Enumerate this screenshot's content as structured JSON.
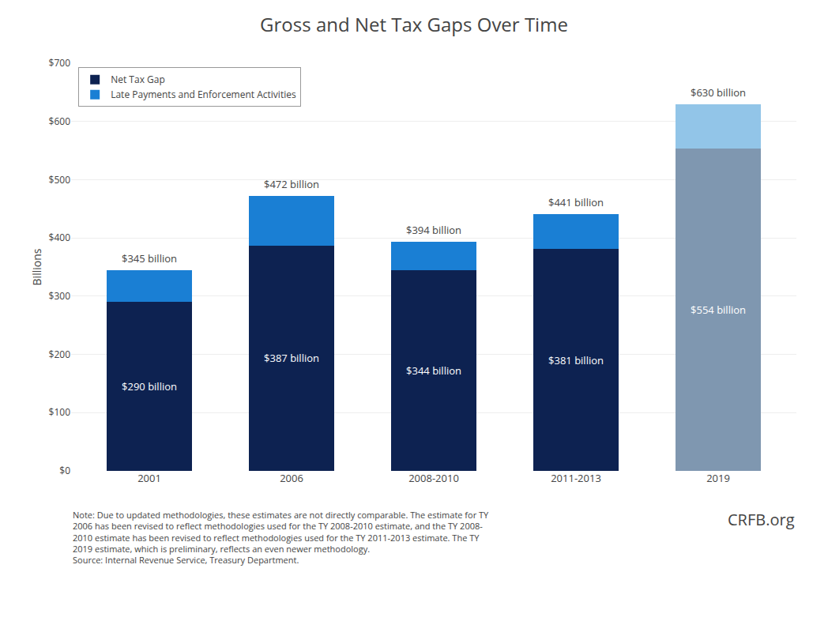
{
  "chart_data": {
    "type": "bar",
    "title": "Gross and Net Tax Gaps Over Time",
    "ylabel": "Billions",
    "categories": [
      "2001",
      "2006",
      "2008-2010",
      "2011-2013",
      "2019"
    ],
    "stacked": true,
    "data_labels": true,
    "series": [
      {
        "name": "Net Tax Gap",
        "values": [
          290,
          387,
          344,
          381,
          554
        ],
        "value_labels": [
          "$290 billion",
          "$387 billion",
          "$344 billion",
          "$381 billion",
          "$554 billion"
        ],
        "colors": [
          "#0d2251",
          "#0d2251",
          "#0d2251",
          "#0d2251",
          "#7f97b0"
        ]
      },
      {
        "name": "Late Payments and Enforcement Activities",
        "values": [
          55,
          85,
          50,
          60,
          76
        ],
        "colors": [
          "#1a7fd4",
          "#1a7fd4",
          "#1a7fd4",
          "#1a7fd4",
          "#92c5e8"
        ]
      }
    ],
    "totals": [
      345,
      472,
      394,
      441,
      630
    ],
    "total_labels": [
      "$345 billion",
      "$472 billion",
      "$394 billion",
      "$441 billion",
      "$630 billion"
    ],
    "ylim": [
      0,
      700
    ],
    "yticks": [
      {
        "value": 0,
        "label": "$0"
      },
      {
        "value": 100,
        "label": "$100"
      },
      {
        "value": 200,
        "label": "$200"
      },
      {
        "value": 300,
        "label": "$300"
      },
      {
        "value": 400,
        "label": "$400"
      },
      {
        "value": 500,
        "label": "$500"
      },
      {
        "value": 600,
        "label": "$600"
      },
      {
        "value": 700,
        "label": "$700"
      }
    ],
    "grid": true,
    "legend": "upper left",
    "annotations": [
      "Note: Due to updated methodologies, these estimates are not directly comparable. The estimate for TY\n2006 has been revised to reflect methodologies used for the TY 2008-2010 estimate, and the TY 2008-\n2010 estimate has been revised to reflect methodologies used for the TY 2011-2013 estimate. The TY\n2019 estimate, which is preliminary, reflects an even newer methodology.\nSource: Internal Revenue Service, Treasury Department.",
      "CRFB.org"
    ]
  }
}
